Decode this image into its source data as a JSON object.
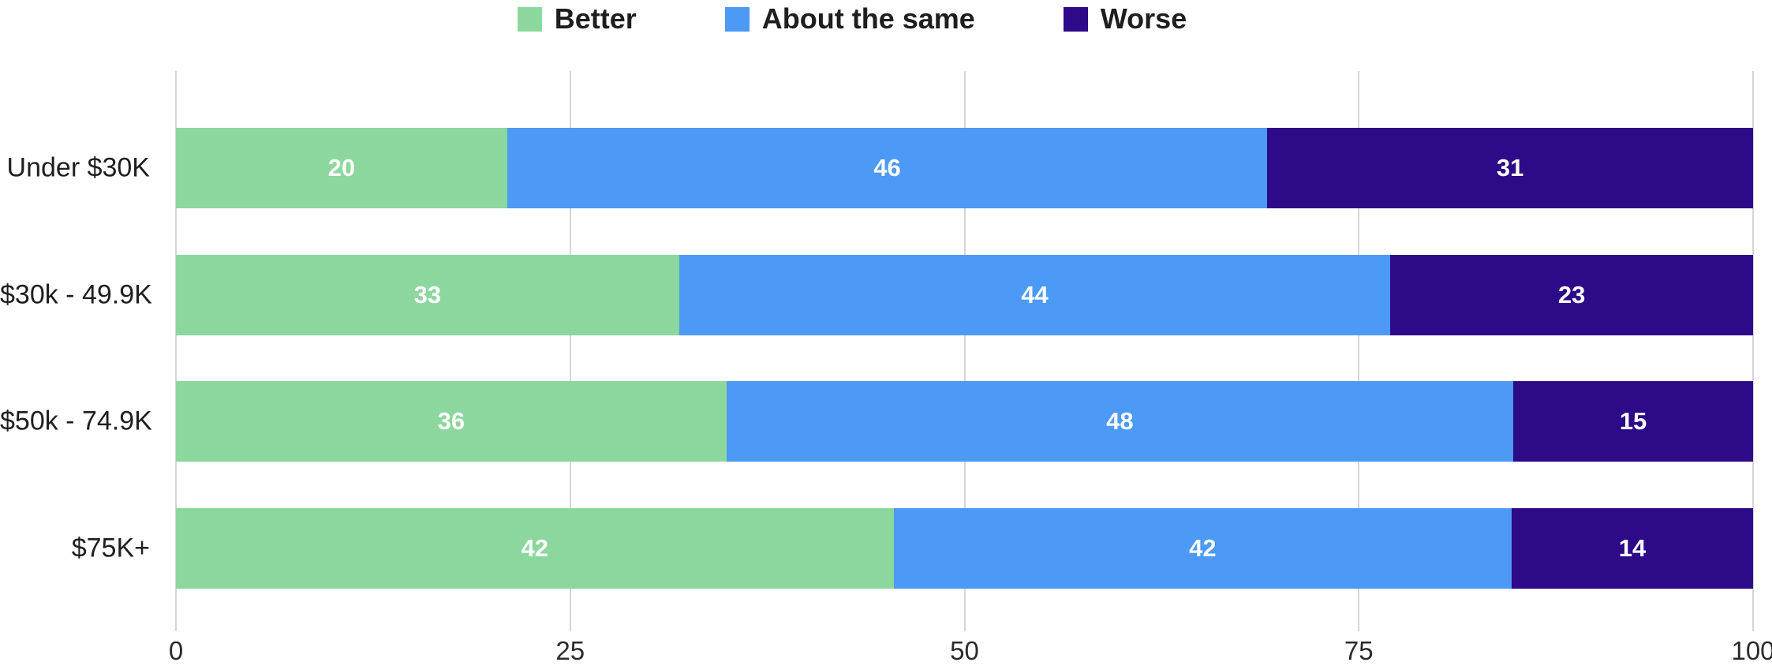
{
  "chart_data": {
    "type": "bar",
    "orientation": "horizontal",
    "stacked": true,
    "title": "",
    "categories": [
      "Under $30K",
      "$30k - 49.9K",
      "$50k - 74.9K",
      "$75K+"
    ],
    "series": [
      {
        "name": "Better",
        "color": "#8CD79D",
        "values": [
          20,
          33,
          36,
          42
        ]
      },
      {
        "name": "About the same",
        "color": "#4C99F6",
        "values": [
          46,
          44,
          48,
          42
        ]
      },
      {
        "name": "Worse",
        "color": "#2D0A87",
        "values": [
          31,
          23,
          15,
          14
        ]
      }
    ],
    "segment_widths_pct": [
      [
        21.0,
        48.2,
        30.8
      ],
      [
        31.9,
        45.1,
        23.0
      ],
      [
        34.9,
        49.9,
        15.2
      ],
      [
        45.5,
        39.2,
        15.3
      ]
    ],
    "x_ticks": [
      "0",
      "25",
      "50",
      "75",
      "100"
    ],
    "xlim": [
      0,
      100
    ],
    "legend_position": "top",
    "grid": "vertical-gridlines",
    "value_label_color": "#FFFFFF",
    "gridline_color": "#D5D5D5",
    "text_color": "#1E1E1E"
  }
}
